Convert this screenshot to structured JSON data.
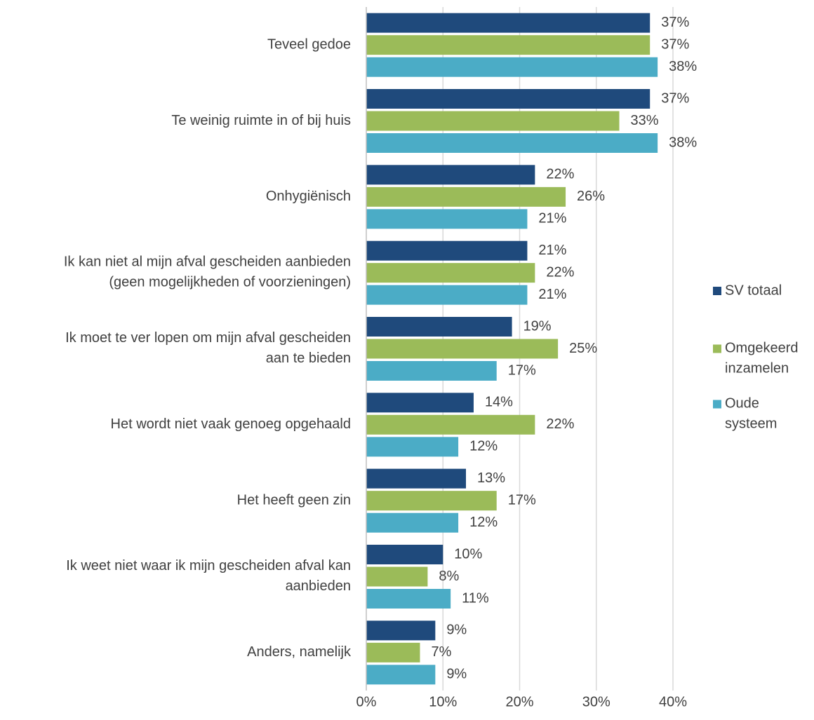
{
  "chart_data": {
    "type": "hbar",
    "categories": [
      "Teveel gedoe",
      "Te weinig ruimte in of bij huis",
      "Onhygiënisch",
      "Ik kan niet al mijn afval gescheiden aanbieden\n(geen mogelijkheden of voorzieningen)",
      "Ik moet te ver lopen om mijn afval gescheiden\naan te bieden",
      "Het wordt niet vaak genoeg opgehaald",
      "Het heeft geen zin",
      "Ik weet niet waar ik mijn gescheiden afval kan\naanbieden",
      "Anders, namelijk"
    ],
    "series": [
      {
        "name": "SV totaal",
        "color": "#1f4a7c",
        "values": [
          37,
          37,
          22,
          21,
          19,
          14,
          13,
          10,
          9
        ],
        "value_labels": [
          "37%",
          "37%",
          "22%",
          "21%",
          "19%",
          "14%",
          "13%",
          "10%",
          "9%"
        ]
      },
      {
        "name": "Omgekeerd\ninzamelen",
        "color": "#9bbb59",
        "values": [
          37,
          33,
          26,
          22,
          25,
          22,
          17,
          8,
          7
        ],
        "value_labels": [
          "37%",
          "33%",
          "26%",
          "22%",
          "25%",
          "22%",
          "17%",
          "8%",
          "7%"
        ]
      },
      {
        "name": "Oude\nsysteem",
        "color": "#4bacc6",
        "values": [
          38,
          38,
          21,
          21,
          17,
          12,
          12,
          11,
          9
        ],
        "value_labels": [
          "38%",
          "38%",
          "21%",
          "21%",
          "17%",
          "12%",
          "12%",
          "11%",
          "9%"
        ]
      }
    ],
    "xlim": [
      0,
      40
    ],
    "xticks": [
      {
        "value": 0,
        "label": "0%"
      },
      {
        "value": 10,
        "label": "10%"
      },
      {
        "value": 20,
        "label": "20%"
      },
      {
        "value": 30,
        "label": "30%"
      },
      {
        "value": 40,
        "label": "40%"
      }
    ],
    "grid": true,
    "legend": "right"
  }
}
